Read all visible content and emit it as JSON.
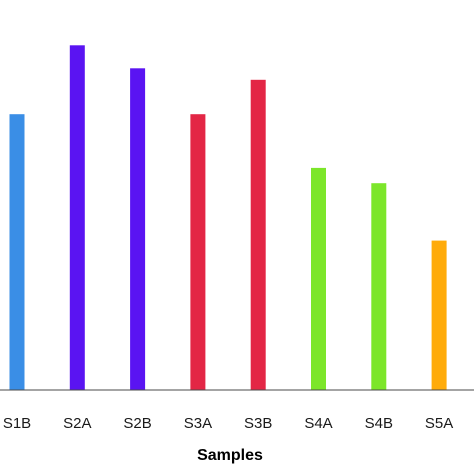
{
  "chart_data": {
    "type": "bar",
    "categories": [
      "S1B",
      "S2A",
      "S2B",
      "S3A",
      "S3B",
      "S4A",
      "S4B",
      "S5A"
    ],
    "values": [
      72,
      90,
      84,
      72,
      81,
      58,
      54,
      39
    ],
    "colors": [
      "#3a8ee6",
      "#5a14f2",
      "#5a14f2",
      "#e32645",
      "#e32645",
      "#7ce62a",
      "#7ce62a",
      "#ffab0a"
    ],
    "xlabel": "Samples",
    "ylabel": "",
    "ylim": [
      0,
      100
    ],
    "grid": false,
    "legend": "none"
  }
}
